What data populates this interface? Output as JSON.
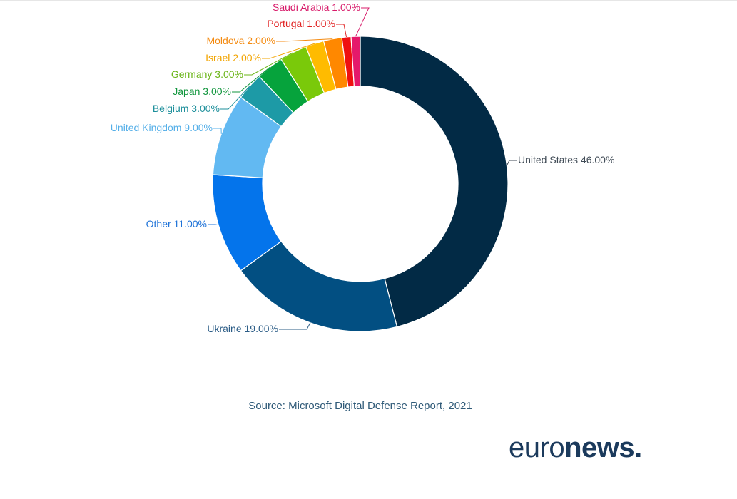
{
  "chart_data": {
    "type": "pie",
    "donut": true,
    "title": "",
    "unit": "%",
    "slices": [
      {
        "label": "United States",
        "value": 46.0,
        "display": "United States 46.00%",
        "color": "#022a45",
        "label_color": "#3f4a55"
      },
      {
        "label": "Ukraine",
        "value": 19.0,
        "display": "Ukraine 19.00%",
        "color": "#024f82",
        "label_color": "#2b5c86"
      },
      {
        "label": "Other",
        "value": 11.0,
        "display": "Other 11.00%",
        "color": "#0474eb",
        "label_color": "#1f73d8"
      },
      {
        "label": "United Kingdom",
        "value": 9.0,
        "display": "United Kingdom 9.00%",
        "color": "#62b9f2",
        "label_color": "#55afe8"
      },
      {
        "label": "Belgium",
        "value": 3.0,
        "display": "Belgium 3.00%",
        "color": "#1d9aa6",
        "label_color": "#1d8f9b"
      },
      {
        "label": "Japan",
        "value": 3.0,
        "display": "Japan 3.00%",
        "color": "#06a33c",
        "label_color": "#10953c"
      },
      {
        "label": "Germany",
        "value": 3.0,
        "display": "Germany 3.00%",
        "color": "#7ac90a",
        "label_color": "#6ab417"
      },
      {
        "label": "Israel",
        "value": 2.0,
        "display": "Israel 2.00%",
        "color": "#ffbb00",
        "label_color": "#f2a400"
      },
      {
        "label": "Moldova",
        "value": 2.0,
        "display": "Moldova 2.00%",
        "color": "#ff8800",
        "label_color": "#f48a10"
      },
      {
        "label": "Portugal",
        "value": 1.0,
        "display": "Portugal 1.00%",
        "color": "#ef1010",
        "label_color": "#e02020"
      },
      {
        "label": "Saudi Arabia",
        "value": 1.0,
        "display": "Saudi Arabia 1.00%",
        "color": "#e5196b",
        "label_color": "#d81b6a"
      }
    ],
    "legend": "none"
  },
  "source": "Source: Microsoft Digital Defense Report, 2021",
  "logo": {
    "part1": "euro",
    "part2": "news."
  }
}
